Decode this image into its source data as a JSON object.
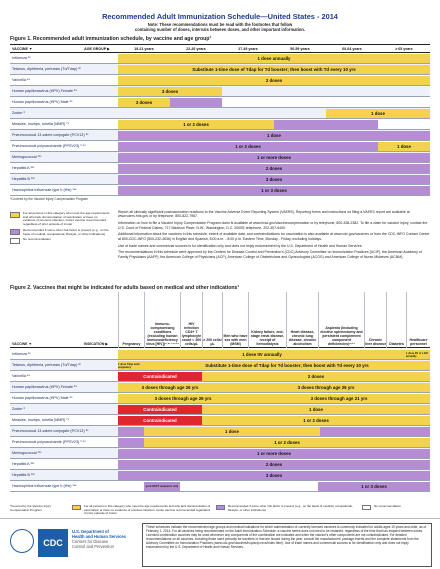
{
  "header": {
    "title": "Recommended Adult Immunization Schedule—United States - 2014",
    "note_line1": "Note: These recommendations must be read with the footnotes that follow",
    "note_line2": "containing number of doses, intervals between doses, and other important information."
  },
  "figure1": {
    "title": "Figure 1. Recommended adult immunization schedule, by vaccine and age group¹",
    "vaccine_label": "VACCINE ▼",
    "age_group_label": "AGE GROUP ▶",
    "age_groups": [
      "19-21 years",
      "22-26 years",
      "27-49 years",
      "50-59 years",
      "60-64 years",
      "≥ 65 years"
    ],
    "rows": [
      {
        "name": "Influenza ²*",
        "label": "1 dose annually"
      },
      {
        "name": "Tetanus, diphtheria, pertussis (Td/Tdap) ³*",
        "label": "Substitute 1-time dose of Tdap for Td booster; then boost with Td every 10 yrs"
      },
      {
        "name": "Varicella ⁴*",
        "label": "2 doses"
      },
      {
        "name": "Human papillomavirus (HPV) Female ⁵*",
        "label": "3 doses"
      },
      {
        "name": "Human papillomavirus (HPV) Male ⁵*",
        "label": "3 doses"
      },
      {
        "name": "Zoster ⁶",
        "label": "1 dose"
      },
      {
        "name": "Measles, mumps, rubella (MMR) ⁷*",
        "label": "1 or 2 doses"
      },
      {
        "name": "Pneumococcal 13-valent conjugate (PCV13) ⁸*",
        "label": "1 dose"
      },
      {
        "name": "Pneumococcal polysaccharide (PPSV23) ⁹·¹⁰",
        "label": "1 or 2 doses",
        "label2": "1 dose"
      },
      {
        "name": "Meningococcal ¹¹*",
        "label": "1 or more doses"
      },
      {
        "name": "Hepatitis A ¹²*",
        "label": "2 doses"
      },
      {
        "name": "Hepatitis B ¹³*",
        "label": "3 doses"
      },
      {
        "name": "Haemophilus influenzae type b (Hib) ¹⁴*",
        "label": "1 or 3 doses"
      }
    ],
    "footnote": "*Covered by the Vaccine Injury Compensation Program"
  },
  "legend": {
    "items": [
      "For all persons in this category who meet the age requirements and who lack documentation of vaccination or have no evidence of previous infection; zoster vaccine recommended regardless of prior episode of zoster",
      "Recommended if some other risk factor is present (e.g., on the basis of medical, occupational, lifestyle, or other indications)",
      "No recommendation"
    ],
    "colors": {
      "yellow": "#f2d34b",
      "purple": "#b48dd4",
      "white": "#ffffff"
    }
  },
  "info": {
    "p1": "Report all clinically significant postvaccination reactions to the Vaccine Adverse Event Reporting System (VAERS). Reporting forms and instructions on filing a VAERS report are available at www.vaers.hhs.gov or by telephone, 800-822-7967.",
    "p2": "Information on how to file a Vaccine Injury Compensation Program claim is available at www.hrsa.gov/vaccinecompensation or by telephone, 800-338-2382. To file a claim for vaccine injury, contact the U.S. Court of Federal Claims, 717 Madison Place, N.W., Washington, D.C. 20005; telephone, 202-357-6400.",
    "p3": "Additional information about the vaccines in this schedule, extent of available data, and contraindications for vaccination is also available at www.cdc.gov/vaccines or from the CDC-INFO Contact Center at 800-CDC-INFO (800-232-4636) in English and Spanish, 8:00 a.m. - 8:00 p.m. Eastern Time, Monday - Friday, excluding holidays.",
    "p4": "Use of trade names and commercial sources is for identification only and does not imply endorsement by the U.S. Department of Health and Human Services.",
    "p5": "The recommendations in this schedule were approved by the Centers for Disease Control and Prevention's (CDC) Advisory Committee on Immunization Practices (ACIP), the American Academy of Family Physicians (AAFP), the American College of Physicians (ACP), American College of Obstetricians and Gynecologists (ACOG) and American College of Nurse-Midwives (ACNM)."
  },
  "figure2": {
    "title": "Figure 2. Vaccines that might be indicated for adults based on medical and other indications¹",
    "vaccine_label": "VACCINE ▼",
    "indication_label": "INDICATION ▶",
    "columns": [
      "Pregnancy",
      "Immuno-compromising conditions (excluding human immunodeficiency virus [HIV])⁴·⁶·⁷·⁸·¹⁴",
      "HIV infection CD4+ T lymphocyte count < 200 cells/μL",
      "≥ 200 cells/μL",
      "Men who have sex with men (MSM)",
      "Kidney failure, end-stage renal disease, receipt of hemodialysis",
      "Heart disease, chronic lung disease, chronic alcoholism",
      "Asplenia (including elective splenectomy and persistent complement component deficiencies)⁸·¹⁴",
      "Chronic liver disease",
      "Diabetes",
      "Healthcare personnel"
    ],
    "rows": [
      {
        "name": "Influenza ²*",
        "label": "1 dose IIV annually",
        "note": "1 dose IIV or LAIV annually"
      },
      {
        "name": "Tetanus, diphtheria, pertussis (Td/Tdap) ³*",
        "pre": "1 dose Tdap each pregnancy",
        "label": "Substitute 1-time dose of Tdap for Td booster; then boost with Td every 10 yrs"
      },
      {
        "name": "Varicella ⁴*",
        "red": "Contraindicated",
        "label": "2 doses"
      },
      {
        "name": "Human papillomavirus (HPV) Female ⁵*",
        "label": "3 doses through age 26 yrs",
        "label2": "3 doses through age 26 yrs"
      },
      {
        "name": "Human papillomavirus (HPV) Male ⁵*",
        "label": "3 doses through age 26 yrs",
        "label2": "3 doses through age 21 yrs"
      },
      {
        "name": "Zoster ⁶",
        "red": "Contraindicated",
        "label": "1 dose"
      },
      {
        "name": "Measles, mumps, rubella (MMR) ⁷*",
        "red": "Contraindicated",
        "label": "1 or 2 doses"
      },
      {
        "name": "Pneumococcal 13-valent conjugate (PCV13) ⁸*",
        "label": "1 dose"
      },
      {
        "name": "Pneumococcal polysaccharide (PPSV23) ⁹·¹⁰",
        "label": "1 or 2 doses"
      },
      {
        "name": "Meningococcal ¹¹*",
        "label": "1 or more doses"
      },
      {
        "name": "Hepatitis A ¹²*",
        "label": "2 doses"
      },
      {
        "name": "Hepatitis B ¹³*",
        "label": "3 doses"
      },
      {
        "name": "Haemophilus influenzae type b (Hib) ¹⁴*",
        "pre": "post-HSCT recipients only",
        "label": "1 or 3 doses"
      }
    ],
    "legend1": "For all persons in this category who meet the age requirements and who lack documentation of vaccination or have no evidence of previous infection; zoster vaccine recommended regardless of prior episode of zoster",
    "legend2": "Recommended if some other risk factor is present (e.g., on the basis of medical, occupational, lifestyle, or other indications)",
    "legend3": "No recommendation",
    "footnote": "*Covered by the Vaccine Injury Compensation Program"
  },
  "footer": {
    "org1": "U.S. Department of",
    "org2": "Health and Human Services",
    "org3": "Centers for Disease",
    "org4": "Control and Prevention",
    "cdc": "CDC",
    "box": "These schedules indicate the recommended age groups and medical indications for which administration of currently licensed vaccines is commonly indicated for adults ages 19 years and older, as of February 1, 2014. For all vaccines being recommended on the Adult Immunization Schedule: a vaccine series does not need to be restarted, regardless of the time that has elapsed between doses. Licensed combination vaccines may be used whenever any components of the combination are indicated and when the vaccine's other components are not contraindicated. For detailed recommendations on all vaccines, including those used primarily for travelers or that are issued during the year, consult the manufacturers' package inserts and the complete statements from the Advisory Committee on Immunization Practices (www.cdc.gov/vaccines/hcp/acip-recs/index.html). Use of trade names and commercial sources is for identification only and does not imply endorsement by the U.S. Department of Health and Human Services."
  }
}
